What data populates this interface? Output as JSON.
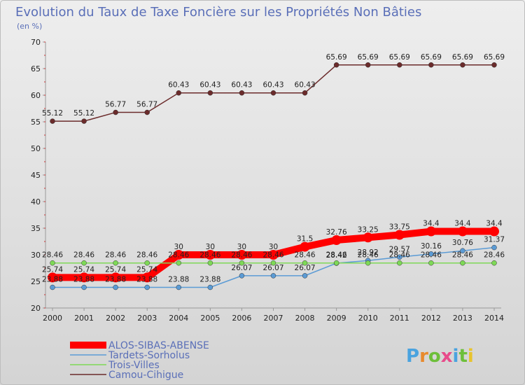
{
  "chart_data": {
    "type": "line",
    "title": "Evolution du Taux de Taxe Foncière sur les Propriétés Non Bâties",
    "subtitle": "(en %)",
    "x": [
      "2000",
      "2001",
      "2002",
      "2003",
      "2004",
      "2005",
      "2006",
      "2007",
      "2008",
      "2009",
      "2010",
      "2011",
      "2012",
      "2013",
      "2014"
    ],
    "ylim": [
      20,
      70
    ],
    "yticks": [
      20,
      25,
      30,
      35,
      40,
      45,
      50,
      55,
      60,
      65,
      70
    ],
    "grid": false,
    "legend_position": "bottom-left",
    "series": [
      {
        "name": "ALOS-SIBAS-ABENSE",
        "color": "#ff0000",
        "values": [
          25.74,
          25.74,
          25.74,
          25.74,
          30,
          30,
          30,
          30,
          31.5,
          32.76,
          33.25,
          33.75,
          34.4,
          34.4,
          34.4
        ],
        "labels": [
          "25.74",
          "25.74",
          "25.74",
          "25.74",
          "30",
          "30",
          "30",
          "30",
          "31.5",
          "32.76",
          "33.25",
          "33.75",
          "34.4",
          "34.4",
          "34.4"
        ]
      },
      {
        "name": "Tardets-Sorholus",
        "color": "#5b9bd5",
        "values": [
          23.88,
          23.88,
          23.88,
          23.88,
          23.88,
          23.88,
          26.07,
          26.07,
          26.07,
          28.42,
          28.92,
          29.57,
          30.16,
          30.76,
          31.37
        ],
        "labels": [
          "23.88",
          "23.88",
          "23.88",
          "23.88",
          "23.88",
          "23.88",
          "26.07",
          "26.07",
          "26.07",
          "28.42",
          "28.92",
          "29.57",
          "30.16",
          "30.76",
          "31.37"
        ]
      },
      {
        "name": "Trois-Villes",
        "color": "#7ed957",
        "values": [
          28.46,
          28.46,
          28.46,
          28.46,
          28.46,
          28.46,
          28.46,
          28.46,
          28.46,
          28.46,
          28.46,
          28.46,
          28.46,
          28.46,
          28.46
        ],
        "labels": [
          "28.46",
          "28.46",
          "28.46",
          "28.46",
          "28.46",
          "28.46",
          "28.46",
          "28.46",
          "28.46",
          "28.46",
          "28.46",
          "28.46",
          "28.46",
          "28.46",
          "28.46"
        ]
      },
      {
        "name": "Camou-Cihigue",
        "color": "#6b2b2b",
        "values": [
          55.12,
          55.12,
          56.77,
          56.77,
          60.43,
          60.43,
          60.43,
          60.43,
          60.43,
          65.69,
          65.69,
          65.69,
          65.69,
          65.69,
          65.69
        ],
        "labels": [
          "55.12",
          "55.12",
          "56.77",
          "56.77",
          "60.43",
          "60.43",
          "60.43",
          "60.43",
          "60.43",
          "65.69",
          "65.69",
          "65.69",
          "65.69",
          "65.69",
          "65.69"
        ]
      }
    ]
  },
  "logo": {
    "text": "Proxiti",
    "letter_colors": [
      "#4aa3df",
      "#e88a2d",
      "#6dbf3a",
      "#e84b8a",
      "#4aa3df",
      "#6dbf3a",
      "#e8c32d"
    ]
  }
}
